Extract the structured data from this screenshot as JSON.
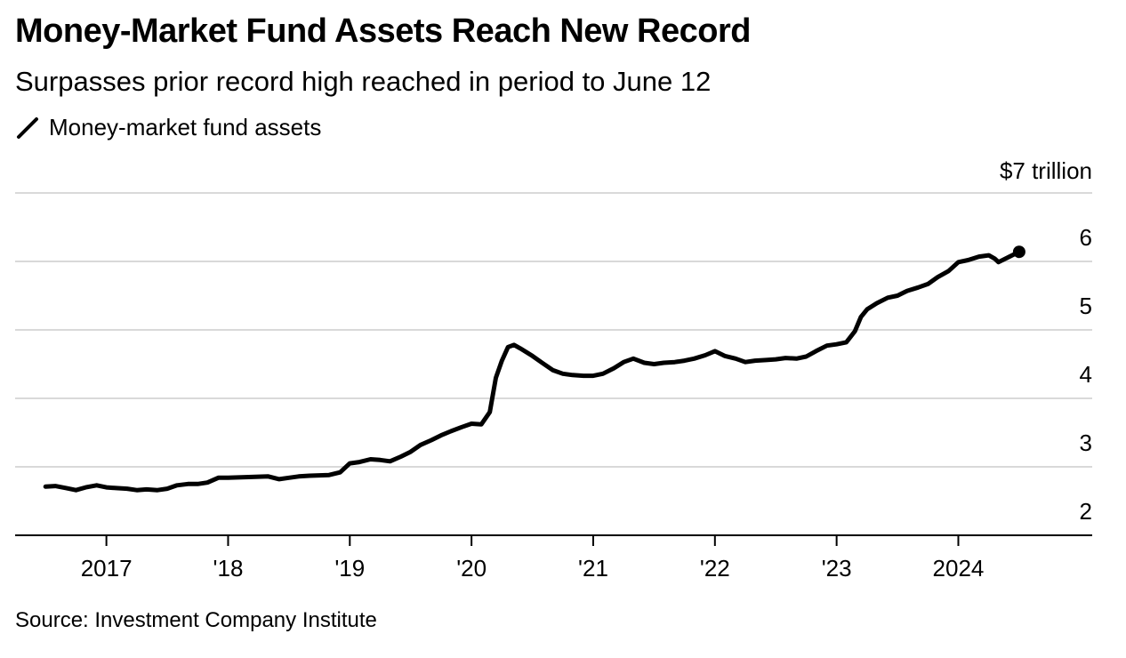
{
  "header": {
    "title": "Money-Market Fund Assets Reach New Record",
    "subtitle": "Surpasses prior record high reached in period to June 12"
  },
  "footer": {
    "source": "Source: Investment Company Institute"
  },
  "colors": {
    "line": "#000000",
    "grid": "#d9d9d9",
    "axis": "#000000",
    "text": "#000000"
  },
  "chart_data": {
    "type": "line",
    "title": "Money-Market Fund Assets Reach New Record",
    "subtitle": "Surpasses prior record high reached in period to June 12",
    "xlabel": "",
    "ylabel": "",
    "y_unit_label": "$7 trillion",
    "ylim": [
      2,
      7
    ],
    "xlim": [
      2016.25,
      2025.1
    ],
    "y_ticks": [
      {
        "value": 7,
        "label": "$7 trillion"
      },
      {
        "value": 6,
        "label": "6"
      },
      {
        "value": 5,
        "label": "5"
      },
      {
        "value": 4,
        "label": "4"
      },
      {
        "value": 3,
        "label": "3"
      },
      {
        "value": 2,
        "label": "2"
      }
    ],
    "x_ticks": [
      {
        "value": 2017,
        "label": "2017"
      },
      {
        "value": 2018,
        "label": "'18"
      },
      {
        "value": 2019,
        "label": "'19"
      },
      {
        "value": 2020,
        "label": "'20"
      },
      {
        "value": 2021,
        "label": "'21"
      },
      {
        "value": 2022,
        "label": "'22"
      },
      {
        "value": 2023,
        "label": "'23"
      },
      {
        "value": 2024,
        "label": "2024"
      }
    ],
    "grid": true,
    "legend": {
      "position": "top-left",
      "entries": [
        "Money-market fund assets"
      ]
    },
    "end_marker": true,
    "series": [
      {
        "name": "Money-market fund assets",
        "x": [
          2016.5,
          2016.58,
          2016.67,
          2016.75,
          2016.83,
          2016.92,
          2017.0,
          2017.08,
          2017.17,
          2017.25,
          2017.33,
          2017.42,
          2017.5,
          2017.58,
          2017.67,
          2017.75,
          2017.83,
          2017.92,
          2018.0,
          2018.17,
          2018.33,
          2018.42,
          2018.5,
          2018.58,
          2018.67,
          2018.83,
          2018.92,
          2019.0,
          2019.08,
          2019.17,
          2019.25,
          2019.33,
          2019.42,
          2019.5,
          2019.58,
          2019.67,
          2019.75,
          2019.83,
          2019.92,
          2020.0,
          2020.08,
          2020.15,
          2020.2,
          2020.25,
          2020.3,
          2020.35,
          2020.4,
          2020.5,
          2020.58,
          2020.67,
          2020.75,
          2020.83,
          2020.92,
          2021.0,
          2021.08,
          2021.17,
          2021.25,
          2021.33,
          2021.42,
          2021.5,
          2021.58,
          2021.67,
          2021.75,
          2021.83,
          2021.92,
          2022.0,
          2022.08,
          2022.17,
          2022.25,
          2022.33,
          2022.42,
          2022.5,
          2022.58,
          2022.67,
          2022.75,
          2022.83,
          2022.92,
          2023.0,
          2023.08,
          2023.15,
          2023.2,
          2023.25,
          2023.33,
          2023.42,
          2023.5,
          2023.58,
          2023.67,
          2023.75,
          2023.83,
          2023.92,
          2024.0,
          2024.08,
          2024.17,
          2024.25,
          2024.3,
          2024.33,
          2024.42,
          2024.5
        ],
        "values": [
          2.71,
          2.72,
          2.69,
          2.66,
          2.7,
          2.73,
          2.7,
          2.69,
          2.68,
          2.66,
          2.67,
          2.66,
          2.68,
          2.73,
          2.75,
          2.75,
          2.77,
          2.84,
          2.84,
          2.85,
          2.86,
          2.82,
          2.84,
          2.86,
          2.87,
          2.88,
          2.92,
          3.05,
          3.07,
          3.11,
          3.1,
          3.08,
          3.15,
          3.22,
          3.32,
          3.39,
          3.46,
          3.52,
          3.58,
          3.63,
          3.62,
          3.8,
          4.3,
          4.55,
          4.75,
          4.78,
          4.73,
          4.62,
          4.52,
          4.41,
          4.36,
          4.34,
          4.33,
          4.33,
          4.36,
          4.44,
          4.53,
          4.58,
          4.52,
          4.5,
          4.52,
          4.53,
          4.55,
          4.58,
          4.63,
          4.69,
          4.62,
          4.58,
          4.53,
          4.55,
          4.56,
          4.57,
          4.59,
          4.58,
          4.61,
          4.69,
          4.77,
          4.79,
          4.82,
          4.98,
          5.19,
          5.3,
          5.39,
          5.47,
          5.5,
          5.57,
          5.62,
          5.67,
          5.77,
          5.86,
          5.99,
          6.02,
          6.07,
          6.09,
          6.04,
          5.99,
          6.07,
          6.14
        ]
      }
    ]
  }
}
